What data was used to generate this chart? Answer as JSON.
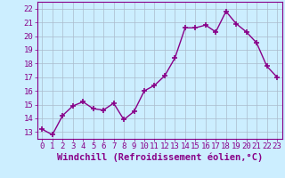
{
  "x": [
    0,
    1,
    2,
    3,
    4,
    5,
    6,
    7,
    8,
    9,
    10,
    11,
    12,
    13,
    14,
    15,
    16,
    17,
    18,
    19,
    20,
    21,
    22,
    23
  ],
  "y": [
    13.2,
    12.8,
    14.2,
    14.9,
    15.2,
    14.7,
    14.6,
    15.1,
    13.9,
    14.5,
    16.0,
    16.4,
    17.1,
    18.4,
    20.6,
    20.6,
    20.8,
    20.3,
    21.8,
    20.9,
    20.3,
    19.5,
    17.8,
    17.0
  ],
  "line_color": "#880088",
  "marker": "+",
  "markersize": 4,
  "markeredgewidth": 1.2,
  "linewidth": 1.0,
  "bg_color": "#cceeff",
  "grid_color": "#aabbcc",
  "xlabel": "Windchill (Refroidissement éolien,°C)",
  "xlabel_fontsize": 7.5,
  "xlim": [
    -0.5,
    23.5
  ],
  "ylim": [
    12.5,
    22.5
  ],
  "yticks": [
    13,
    14,
    15,
    16,
    17,
    18,
    19,
    20,
    21,
    22
  ],
  "xtick_labels": [
    "0",
    "1",
    "2",
    "3",
    "4",
    "5",
    "6",
    "7",
    "8",
    "9",
    "10",
    "11",
    "12",
    "13",
    "14",
    "15",
    "16",
    "17",
    "18",
    "19",
    "20",
    "21",
    "22",
    "23"
  ],
  "tick_fontsize": 6.5,
  "tick_label_color": "#880088",
  "spine_color": "#880088"
}
